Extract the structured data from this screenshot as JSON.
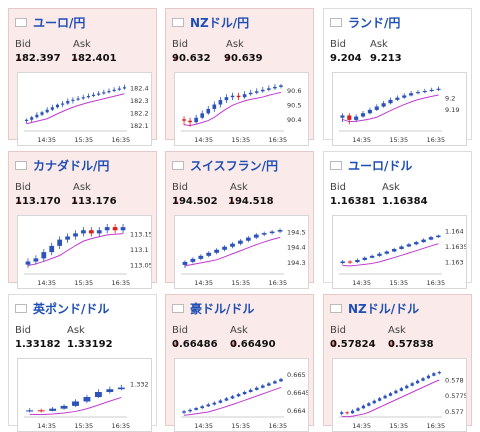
{
  "colors": {
    "up": "#2b53b8",
    "down": "#d81e1e",
    "ma": "#c23ad0",
    "pair": "#1f4fb5",
    "arrow_down": "#d12a2a"
  },
  "labels": {
    "bid": "Bid",
    "ask": "Ask"
  },
  "cards": [
    {
      "pair": "ユーロ/円",
      "flag_icon": "eu-flag-icon",
      "bid": "182.397",
      "ask": "182.401",
      "bid_dir": "down",
      "ask_dir": "down",
      "chart_data": {
        "type": "candlestick",
        "x_ticks": [
          "14:35",
          "15:35",
          "16:35"
        ],
        "y_ticks": [
          "182.4",
          "182.3",
          "182.2",
          "182.1"
        ],
        "ylim": [
          182.05,
          182.45
        ],
        "candles": [
          [
            182.13,
            182.14,
            182.11,
            182.15
          ],
          [
            182.14,
            182.16,
            182.12,
            182.17
          ],
          [
            182.16,
            182.18,
            182.15,
            182.2
          ],
          [
            182.18,
            182.2,
            182.17,
            182.21
          ],
          [
            182.2,
            182.22,
            182.19,
            182.24
          ],
          [
            182.22,
            182.24,
            182.21,
            182.26
          ],
          [
            182.24,
            182.26,
            182.23,
            182.27
          ],
          [
            182.26,
            182.27,
            182.24,
            182.29
          ],
          [
            182.27,
            182.29,
            182.26,
            182.31
          ],
          [
            182.29,
            182.3,
            182.27,
            182.32
          ],
          [
            182.3,
            182.31,
            182.29,
            182.33
          ],
          [
            182.31,
            182.32,
            182.3,
            182.34
          ],
          [
            182.32,
            182.33,
            182.31,
            182.35
          ],
          [
            182.33,
            182.34,
            182.32,
            182.36
          ],
          [
            182.34,
            182.35,
            182.33,
            182.37
          ],
          [
            182.35,
            182.36,
            182.34,
            182.38
          ],
          [
            182.36,
            182.37,
            182.35,
            182.39
          ],
          [
            182.37,
            182.38,
            182.36,
            182.4
          ],
          [
            182.38,
            182.39,
            182.37,
            182.41
          ],
          [
            182.39,
            182.4,
            182.38,
            182.42
          ]
        ]
      }
    },
    {
      "pair": "NZドル/円",
      "flag_icon": "nz-flag-icon",
      "bid": "90.632",
      "ask": "90.639",
      "bid_dir": "down",
      "ask_dir": "down",
      "chart_data": {
        "type": "candlestick",
        "x_ticks": [
          "14:35",
          "15:35",
          "16:35"
        ],
        "y_ticks": [
          "90.6",
          "90.5",
          "90.4"
        ],
        "ylim": [
          90.32,
          90.66
        ],
        "candles": [
          [
            90.4,
            90.39,
            90.36,
            90.42
          ],
          [
            90.39,
            90.38,
            90.35,
            90.41
          ],
          [
            90.38,
            90.41,
            90.37,
            90.43
          ],
          [
            90.41,
            90.44,
            90.4,
            90.46
          ],
          [
            90.44,
            90.47,
            90.43,
            90.49
          ],
          [
            90.47,
            90.5,
            90.45,
            90.52
          ],
          [
            90.5,
            90.53,
            90.48,
            90.55
          ],
          [
            90.53,
            90.55,
            90.51,
            90.57
          ],
          [
            90.55,
            90.56,
            90.53,
            90.58
          ],
          [
            90.56,
            90.55,
            90.53,
            90.58
          ],
          [
            90.55,
            90.57,
            90.54,
            90.59
          ],
          [
            90.57,
            90.58,
            90.56,
            90.6
          ],
          [
            90.58,
            90.59,
            90.57,
            90.61
          ],
          [
            90.59,
            90.6,
            90.58,
            90.62
          ],
          [
            90.6,
            90.61,
            90.59,
            90.63
          ],
          [
            90.61,
            90.62,
            90.6,
            90.64
          ],
          [
            90.62,
            90.63,
            90.61,
            90.64
          ]
        ]
      }
    },
    {
      "pair": "ランド/円",
      "flag_icon": "za-flag-icon",
      "bid": "9.204",
      "ask": "9.213",
      "bid_dir": "none",
      "ask_dir": "none",
      "chart_data": {
        "type": "candlestick",
        "x_ticks": [
          "14:35",
          "15:35",
          "16:35"
        ],
        "y_ticks": [
          "9.2",
          "9.19"
        ],
        "ylim": [
          9.17,
          9.215
        ],
        "candles": [
          [
            9.182,
            9.184,
            9.178,
            9.186
          ],
          [
            9.184,
            9.18,
            9.176,
            9.186
          ],
          [
            9.18,
            9.183,
            9.178,
            9.185
          ],
          [
            9.183,
            9.186,
            9.182,
            9.188
          ],
          [
            9.186,
            9.189,
            9.185,
            9.191
          ],
          [
            9.189,
            9.192,
            9.188,
            9.194
          ],
          [
            9.192,
            9.195,
            9.191,
            9.197
          ],
          [
            9.195,
            9.198,
            9.194,
            9.2
          ],
          [
            9.198,
            9.2,
            9.197,
            9.202
          ],
          [
            9.2,
            9.202,
            9.199,
            9.204
          ],
          [
            9.202,
            9.204,
            9.201,
            9.206
          ],
          [
            9.204,
            9.205,
            9.203,
            9.207
          ],
          [
            9.205,
            9.206,
            9.204,
            9.208
          ],
          [
            9.206,
            9.207,
            9.205,
            9.209
          ],
          [
            9.207,
            9.208,
            9.206,
            9.21
          ]
        ]
      }
    },
    {
      "pair": "カナダドル/円",
      "flag_icon": "ca-flag-icon",
      "bid": "113.170",
      "ask": "113.176",
      "bid_dir": "down",
      "ask_dir": "down",
      "chart_data": {
        "type": "candlestick",
        "x_ticks": [
          "14:35",
          "15:35",
          "16:35"
        ],
        "y_ticks": [
          "113.15",
          "113.1",
          "113.05"
        ],
        "ylim": [
          113.02,
          113.18
        ],
        "candles": [
          [
            113.05,
            113.06,
            113.04,
            113.07
          ],
          [
            113.06,
            113.07,
            113.05,
            113.08
          ],
          [
            113.07,
            113.09,
            113.06,
            113.1
          ],
          [
            113.09,
            113.11,
            113.08,
            113.12
          ],
          [
            113.11,
            113.13,
            113.1,
            113.14
          ],
          [
            113.13,
            113.14,
            113.12,
            113.15
          ],
          [
            113.14,
            113.15,
            113.13,
            113.16
          ],
          [
            113.15,
            113.16,
            113.14,
            113.17
          ],
          [
            113.16,
            113.15,
            113.14,
            113.17
          ],
          [
            113.15,
            113.16,
            113.14,
            113.17
          ],
          [
            113.16,
            113.17,
            113.15,
            113.18
          ],
          [
            113.17,
            113.16,
            113.15,
            113.18
          ],
          [
            113.16,
            113.17,
            113.15,
            113.18
          ]
        ]
      }
    },
    {
      "pair": "スイスフラン/円",
      "flag_icon": "ch-flag-icon",
      "bid": "194.502",
      "ask": "194.518",
      "bid_dir": "down",
      "ask_dir": "down",
      "chart_data": {
        "type": "candlestick",
        "x_ticks": [
          "14:35",
          "15:35",
          "16:35"
        ],
        "y_ticks": [
          "194.5",
          "194.4",
          "194.3"
        ],
        "ylim": [
          194.22,
          194.55
        ],
        "candles": [
          [
            194.28,
            194.3,
            194.26,
            194.31
          ],
          [
            194.3,
            194.32,
            194.29,
            194.33
          ],
          [
            194.32,
            194.34,
            194.31,
            194.35
          ],
          [
            194.34,
            194.36,
            194.33,
            194.37
          ],
          [
            194.36,
            194.38,
            194.35,
            194.39
          ],
          [
            194.38,
            194.4,
            194.37,
            194.41
          ],
          [
            194.4,
            194.42,
            194.39,
            194.43
          ],
          [
            194.42,
            194.44,
            194.41,
            194.45
          ],
          [
            194.44,
            194.46,
            194.43,
            194.47
          ],
          [
            194.46,
            194.48,
            194.45,
            194.49
          ],
          [
            194.48,
            194.49,
            194.47,
            194.5
          ],
          [
            194.49,
            194.5,
            194.48,
            194.51
          ],
          [
            194.5,
            194.51,
            194.49,
            194.52
          ]
        ]
      }
    },
    {
      "pair": "ユーロ/ドル",
      "flag_icon": "eu-us-flag-icon",
      "bid": "1.16381",
      "ask": "1.16384",
      "bid_dir": "none",
      "ask_dir": "none",
      "chart_data": {
        "type": "candlestick",
        "x_ticks": [
          "14:35",
          "15:35",
          "16:35"
        ],
        "y_ticks": [
          "1.164",
          "1.1635",
          "1.163"
        ],
        "ylim": [
          1.1626,
          1.1642
        ],
        "candles": [
          [
            1.16295,
            1.163,
            1.1629,
            1.16305
          ],
          [
            1.163,
            1.16298,
            1.16292,
            1.16304
          ],
          [
            1.16298,
            1.16305,
            1.16295,
            1.1631
          ],
          [
            1.16305,
            1.16312,
            1.16302,
            1.16316
          ],
          [
            1.16312,
            1.16318,
            1.1631,
            1.16322
          ],
          [
            1.16318,
            1.16325,
            1.16315,
            1.1633
          ],
          [
            1.16325,
            1.16332,
            1.16322,
            1.16336
          ],
          [
            1.16332,
            1.1634,
            1.1633,
            1.16344
          ],
          [
            1.1634,
            1.16348,
            1.16338,
            1.16352
          ],
          [
            1.16348,
            1.16355,
            1.16346,
            1.1636
          ],
          [
            1.16355,
            1.16362,
            1.16352,
            1.16366
          ],
          [
            1.16362,
            1.1637,
            1.1636,
            1.16374
          ],
          [
            1.1637,
            1.16378,
            1.16368,
            1.16382
          ],
          [
            1.16378,
            1.16383,
            1.16375,
            1.16386
          ]
        ]
      }
    },
    {
      "pair": "英ポンド/ドル",
      "flag_icon": "gb-flag-icon",
      "bid": "1.33182",
      "ask": "1.33192",
      "bid_dir": "none",
      "ask_dir": "none",
      "chart_data": {
        "type": "candlestick",
        "x_ticks": [
          "14:35",
          "15:35",
          "16:35"
        ],
        "y_ticks": [
          "1.332"
        ],
        "ylim": [
          1.3314,
          1.3323
        ],
        "candles": [
          [
            1.3315,
            1.33152,
            1.33148,
            1.33156
          ],
          [
            1.33152,
            1.33151,
            1.33148,
            1.33155
          ],
          [
            1.33151,
            1.33155,
            1.3315,
            1.33158
          ],
          [
            1.33155,
            1.3316,
            1.33153,
            1.33163
          ],
          [
            1.3316,
            1.33168,
            1.33158,
            1.33172
          ],
          [
            1.33168,
            1.33176,
            1.33165,
            1.3318
          ],
          [
            1.33176,
            1.33185,
            1.33174,
            1.3319
          ],
          [
            1.33185,
            1.3319,
            1.33182,
            1.33195
          ],
          [
            1.3319,
            1.33193,
            1.33188,
            1.33198
          ]
        ]
      }
    },
    {
      "pair": "豪ドル/ドル",
      "flag_icon": "au-flag-icon",
      "bid": "0.66486",
      "ask": "0.66490",
      "bid_dir": "down",
      "ask_dir": "down",
      "chart_data": {
        "type": "candlestick",
        "x_ticks": [
          "14:35",
          "15:35",
          "16:35"
        ],
        "y_ticks": [
          "0.665",
          "0.6645",
          "0.664"
        ],
        "ylim": [
          0.6638,
          0.6652
        ],
        "candles": [
          [
            0.66392,
            0.66396,
            0.66388,
            0.664
          ],
          [
            0.66396,
            0.664,
            0.66392,
            0.66404
          ],
          [
            0.664,
            0.66405,
            0.66398,
            0.66408
          ],
          [
            0.66405,
            0.6641,
            0.66402,
            0.66414
          ],
          [
            0.6641,
            0.66415,
            0.66408,
            0.6642
          ],
          [
            0.66415,
            0.6642,
            0.66412,
            0.66424
          ],
          [
            0.6642,
            0.66426,
            0.66418,
            0.6643
          ],
          [
            0.66426,
            0.66432,
            0.66424,
            0.66436
          ],
          [
            0.66432,
            0.66438,
            0.6643,
            0.66442
          ],
          [
            0.66438,
            0.66444,
            0.66436,
            0.66448
          ],
          [
            0.66444,
            0.6645,
            0.66442,
            0.66454
          ],
          [
            0.6645,
            0.66456,
            0.66448,
            0.6646
          ],
          [
            0.66456,
            0.66462,
            0.66454,
            0.66466
          ],
          [
            0.66462,
            0.66468,
            0.6646,
            0.66472
          ],
          [
            0.66468,
            0.66474,
            0.66466,
            0.66478
          ],
          [
            0.66474,
            0.6648,
            0.66472,
            0.66484
          ],
          [
            0.6648,
            0.66486,
            0.66478,
            0.6649
          ]
        ]
      }
    },
    {
      "pair": "NZドル/ドル",
      "flag_icon": "nz-us-flag-icon",
      "bid": "0.57824",
      "ask": "0.57838",
      "bid_dir": "down",
      "ask_dir": "down",
      "chart_data": {
        "type": "candlestick",
        "x_ticks": [
          "14:35",
          "15:35",
          "16:35"
        ],
        "y_ticks": [
          "0.578",
          "0.5775",
          "0.577"
        ],
        "ylim": [
          0.5768,
          0.5784
        ],
        "candles": [
          [
            0.5769,
            0.57695,
            0.57685,
            0.577
          ],
          [
            0.57695,
            0.57692,
            0.57688,
            0.57698
          ],
          [
            0.57692,
            0.577,
            0.5769,
            0.57705
          ],
          [
            0.577,
            0.57708,
            0.57698,
            0.57712
          ],
          [
            0.57708,
            0.57716,
            0.57706,
            0.5772
          ],
          [
            0.57716,
            0.57724,
            0.57714,
            0.57728
          ],
          [
            0.57724,
            0.57732,
            0.57722,
            0.57736
          ],
          [
            0.57732,
            0.5774,
            0.5773,
            0.57744
          ],
          [
            0.5774,
            0.57748,
            0.57738,
            0.57752
          ],
          [
            0.57748,
            0.57756,
            0.57746,
            0.5776
          ],
          [
            0.57756,
            0.57764,
            0.57754,
            0.57768
          ],
          [
            0.57764,
            0.57772,
            0.57762,
            0.57776
          ],
          [
            0.57772,
            0.5778,
            0.5777,
            0.57784
          ],
          [
            0.5778,
            0.57788,
            0.57778,
            0.57792
          ],
          [
            0.57788,
            0.57796,
            0.57786,
            0.578
          ],
          [
            0.57796,
            0.57804,
            0.57794,
            0.57808
          ],
          [
            0.57804,
            0.57812,
            0.57802,
            0.57816
          ],
          [
            0.57812,
            0.5782,
            0.5781,
            0.57824
          ],
          [
            0.5782,
            0.57824,
            0.57816,
            0.57828
          ]
        ]
      }
    }
  ]
}
